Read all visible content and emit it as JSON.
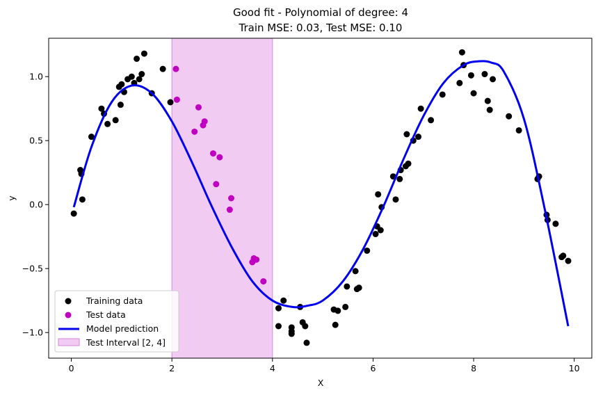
{
  "chart_data": {
    "type": "scatter",
    "title": "Good fit - Polynomial of degree: 4",
    "subtitle": "Train MSE: 0.03, Test MSE: 0.10",
    "xlabel": "X",
    "ylabel": "y",
    "xlim": [
      -0.45,
      10.35
    ],
    "ylim": [
      -1.2,
      1.3
    ],
    "xticks": [
      0,
      2,
      4,
      6,
      8,
      10
    ],
    "xtick_labels": [
      "0",
      "2",
      "4",
      "6",
      "8",
      "10"
    ],
    "yticks": [
      -1.0,
      -0.5,
      0.0,
      0.5,
      1.0
    ],
    "ytick_labels": [
      "−1.0",
      "−0.5",
      "0.0",
      "0.5",
      "1.0"
    ],
    "grid": false,
    "legend_position": "lower-left",
    "shaded_region": {
      "name": "Test Interval [2, 4]",
      "x_start": 2,
      "x_end": 4,
      "color": "#e8a8e8"
    },
    "series": [
      {
        "name": "Training data",
        "kind": "scatter",
        "color": "#000000",
        "points": [
          [
            0.05,
            -0.07
          ],
          [
            0.18,
            0.27
          ],
          [
            0.2,
            0.24
          ],
          [
            0.22,
            0.04
          ],
          [
            0.4,
            0.53
          ],
          [
            0.6,
            0.75
          ],
          [
            0.65,
            0.71
          ],
          [
            0.72,
            0.63
          ],
          [
            0.88,
            0.66
          ],
          [
            0.95,
            0.92
          ],
          [
            0.98,
            0.78
          ],
          [
            1.0,
            0.94
          ],
          [
            1.05,
            0.88
          ],
          [
            1.12,
            0.98
          ],
          [
            1.2,
            1.0
          ],
          [
            1.25,
            0.95
          ],
          [
            1.3,
            1.14
          ],
          [
            1.35,
            0.98
          ],
          [
            1.4,
            1.02
          ],
          [
            1.45,
            1.18
          ],
          [
            1.6,
            0.87
          ],
          [
            1.82,
            1.06
          ],
          [
            1.97,
            0.8
          ],
          [
            4.12,
            -0.81
          ],
          [
            4.12,
            -0.95
          ],
          [
            4.22,
            -0.75
          ],
          [
            4.38,
            -0.96
          ],
          [
            4.38,
            -1.01
          ],
          [
            4.38,
            -0.99
          ],
          [
            4.55,
            -0.8
          ],
          [
            4.6,
            -0.92
          ],
          [
            4.65,
            -0.95
          ],
          [
            4.68,
            -1.08
          ],
          [
            5.22,
            -0.82
          ],
          [
            5.25,
            -0.94
          ],
          [
            5.3,
            -0.83
          ],
          [
            5.45,
            -0.8
          ],
          [
            5.48,
            -0.64
          ],
          [
            5.65,
            -0.52
          ],
          [
            5.68,
            -0.66
          ],
          [
            5.72,
            -0.65
          ],
          [
            5.88,
            -0.36
          ],
          [
            6.05,
            -0.23
          ],
          [
            6.08,
            -0.17
          ],
          [
            6.1,
            0.08
          ],
          [
            6.15,
            -0.2
          ],
          [
            6.17,
            -0.02
          ],
          [
            6.4,
            0.22
          ],
          [
            6.45,
            0.04
          ],
          [
            6.53,
            0.2
          ],
          [
            6.55,
            0.27
          ],
          [
            6.65,
            0.3
          ],
          [
            6.67,
            0.55
          ],
          [
            6.7,
            0.32
          ],
          [
            6.8,
            0.5
          ],
          [
            6.9,
            0.53
          ],
          [
            6.95,
            0.75
          ],
          [
            7.15,
            0.66
          ],
          [
            7.38,
            0.86
          ],
          [
            7.72,
            0.95
          ],
          [
            7.77,
            1.19
          ],
          [
            7.8,
            1.09
          ],
          [
            7.95,
            1.01
          ],
          [
            8.0,
            0.87
          ],
          [
            8.22,
            1.02
          ],
          [
            8.28,
            0.81
          ],
          [
            8.32,
            0.74
          ],
          [
            8.38,
            0.98
          ],
          [
            8.7,
            0.69
          ],
          [
            8.9,
            0.58
          ],
          [
            9.27,
            0.2
          ],
          [
            9.3,
            0.22
          ],
          [
            9.45,
            -0.08
          ],
          [
            9.47,
            -0.12
          ],
          [
            9.63,
            -0.15
          ],
          [
            9.75,
            -0.41
          ],
          [
            9.78,
            -0.4
          ],
          [
            9.88,
            -0.44
          ]
        ]
      },
      {
        "name": "Test data",
        "kind": "scatter",
        "color": "#c000c0",
        "points": [
          [
            2.08,
            1.06
          ],
          [
            2.1,
            0.82
          ],
          [
            2.45,
            0.57
          ],
          [
            2.53,
            0.76
          ],
          [
            2.62,
            0.62
          ],
          [
            2.65,
            0.65
          ],
          [
            2.82,
            0.4
          ],
          [
            2.88,
            0.16
          ],
          [
            2.95,
            0.37
          ],
          [
            3.15,
            -0.04
          ],
          [
            3.18,
            0.05
          ],
          [
            3.6,
            -0.45
          ],
          [
            3.63,
            -0.42
          ],
          [
            3.68,
            -0.43
          ],
          [
            3.82,
            -0.6
          ]
        ]
      },
      {
        "name": "Model prediction",
        "kind": "line",
        "color": "#0000ee",
        "x": [
          0.05,
          0.4,
          0.8,
          1.2,
          1.6,
          2.0,
          2.4,
          2.8,
          3.2,
          3.6,
          4.0,
          4.4,
          4.7,
          5.0,
          5.4,
          5.8,
          6.2,
          6.6,
          7.0,
          7.4,
          7.8,
          8.1,
          8.35,
          8.6,
          9.0,
          9.4,
          9.88
        ],
        "values": [
          -0.02,
          0.45,
          0.8,
          0.93,
          0.87,
          0.65,
          0.33,
          -0.02,
          -0.34,
          -0.6,
          -0.75,
          -0.8,
          -0.79,
          -0.75,
          -0.6,
          -0.35,
          -0.02,
          0.35,
          0.69,
          0.95,
          1.09,
          1.12,
          1.11,
          1.04,
          0.67,
          -0.01,
          -0.95
        ]
      }
    ]
  }
}
